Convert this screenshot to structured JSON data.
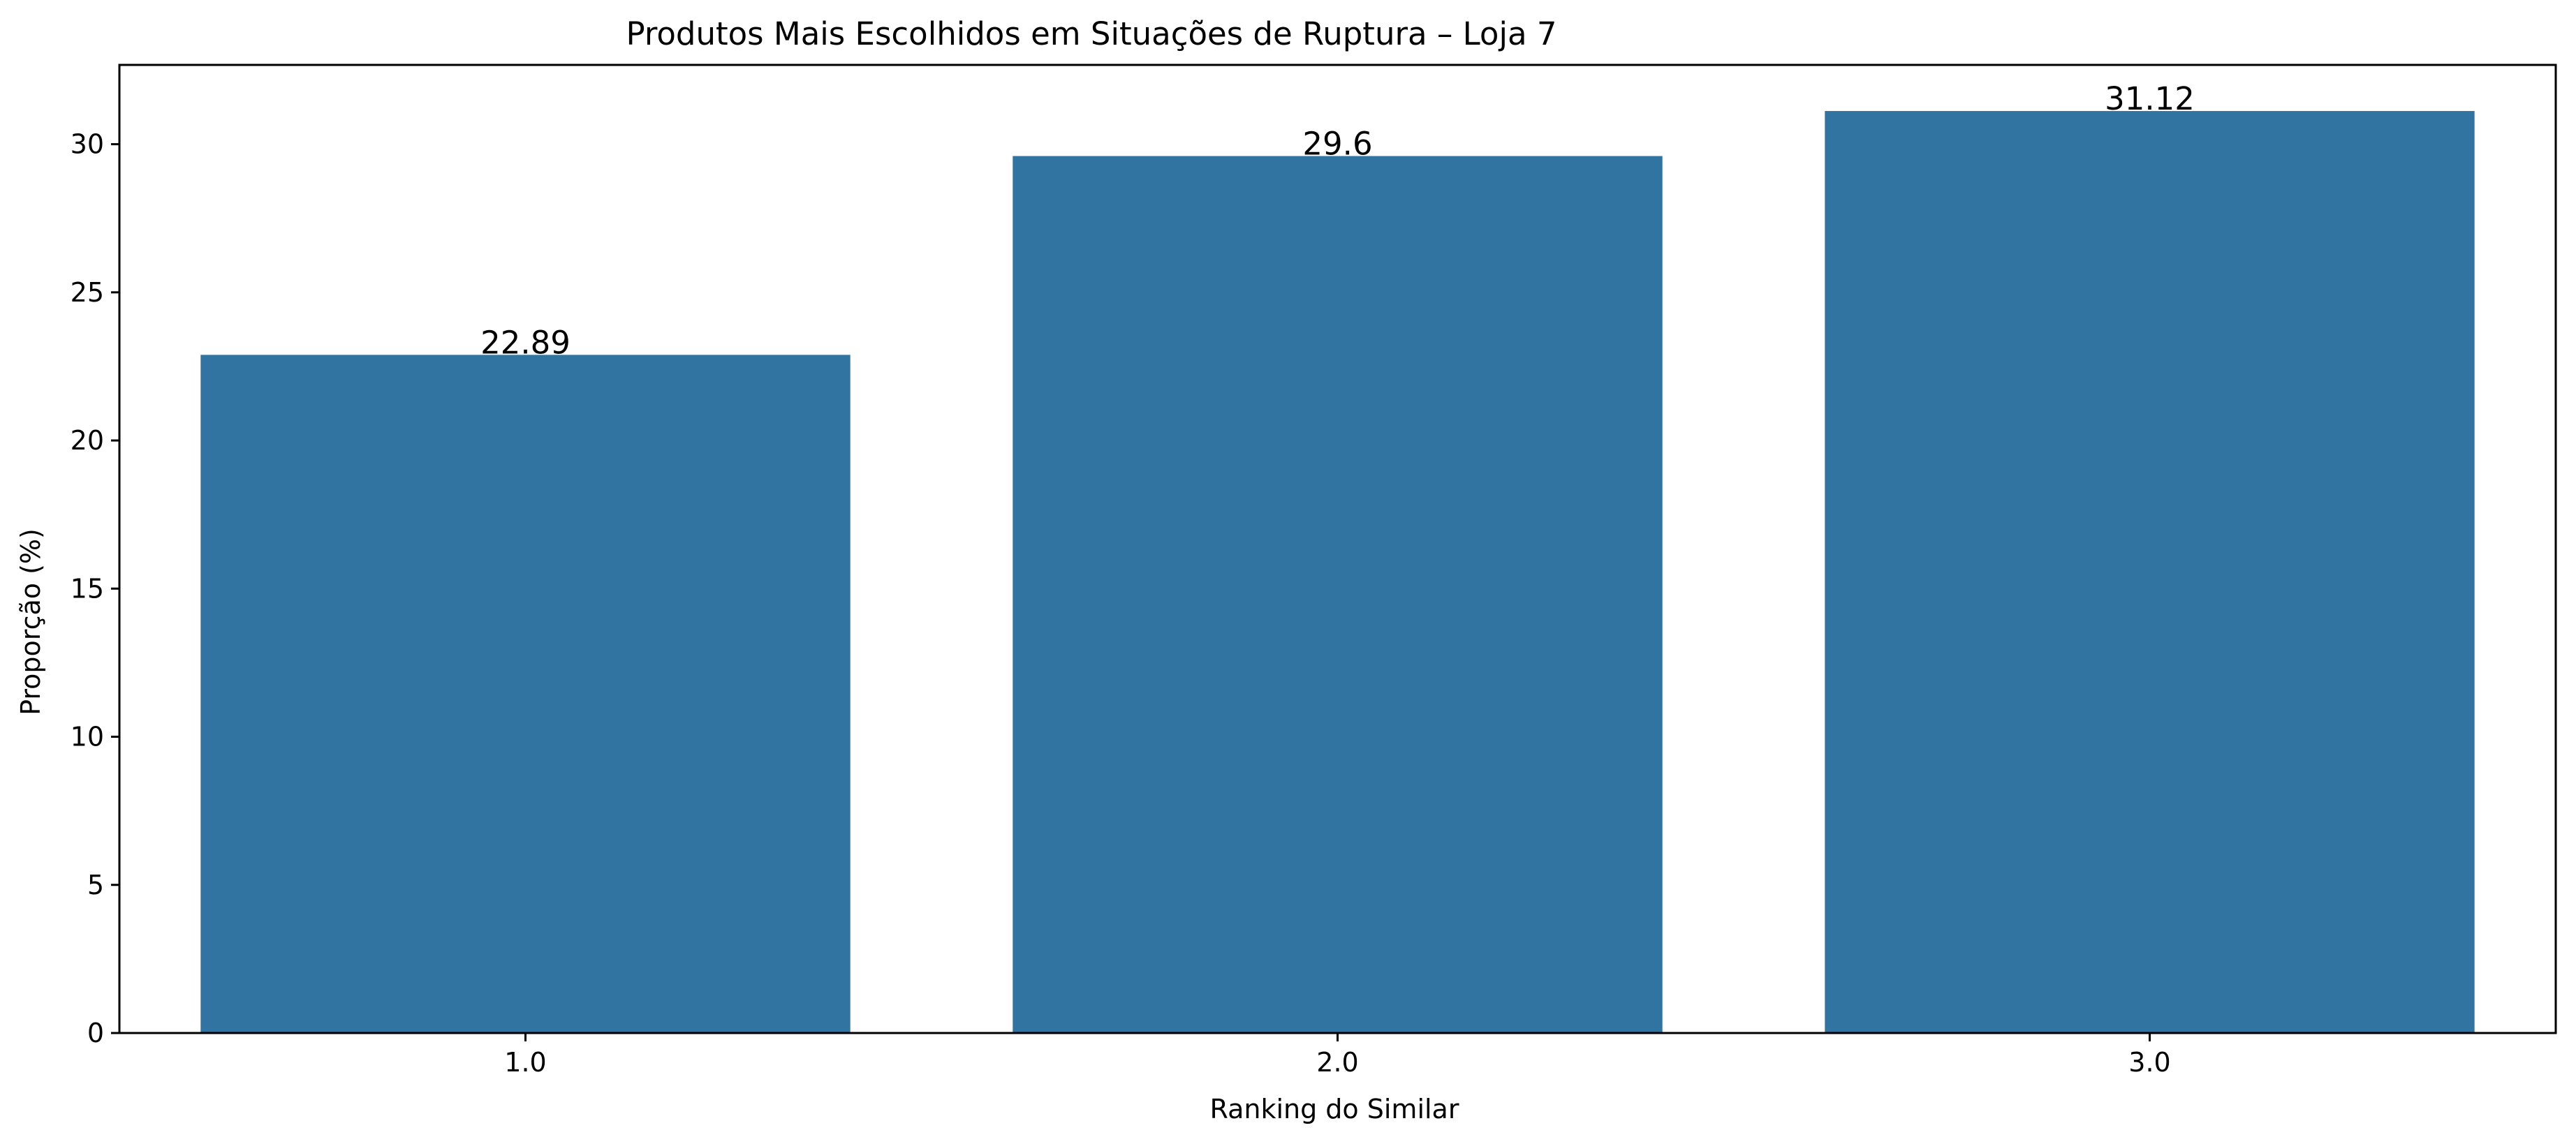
{
  "chart_data": {
    "type": "bar",
    "title": "Produtos Mais Escolhidos em Situações de Ruptura – Loja 7",
    "xlabel": "Ranking do Similar",
    "ylabel": "Proporção (%)",
    "categories": [
      "1.0",
      "2.0",
      "3.0"
    ],
    "values": [
      22.89,
      29.6,
      31.12
    ],
    "value_labels": [
      "22.89",
      "29.6",
      "31.12"
    ],
    "ylim": [
      0,
      32.676
    ],
    "yticks": [
      0,
      5,
      10,
      15,
      20,
      25,
      30
    ],
    "ytick_labels": [
      "0",
      "5",
      "10",
      "15",
      "20",
      "25",
      "30"
    ],
    "bar_color": "#3274a1",
    "grid": false,
    "legend": "none"
  }
}
